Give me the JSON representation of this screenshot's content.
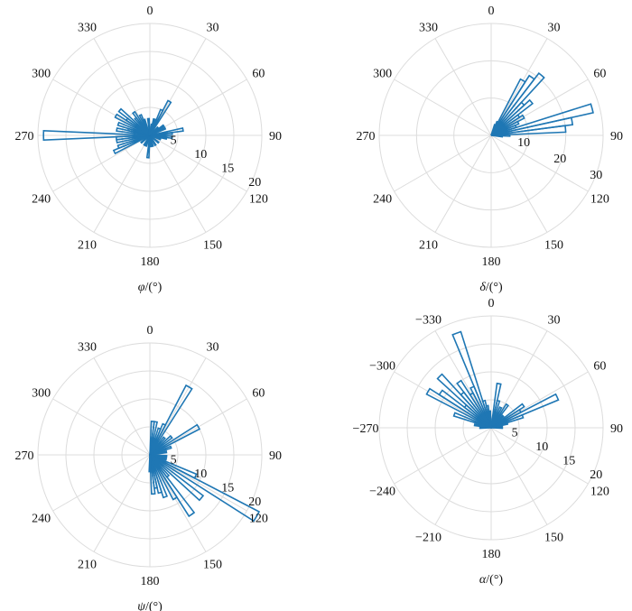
{
  "colors": {
    "bar": "#1f77b4",
    "grid": "#dcdcdc",
    "text": "#111111",
    "background": "#ffffff"
  },
  "chart_data": [
    {
      "type": "polar-histogram",
      "xlabel_var": "φ",
      "xlabel_unit": "/(°)",
      "angle_ticks": [
        {
          "angle": 0,
          "label": "0"
        },
        {
          "angle": 30,
          "label": "30"
        },
        {
          "angle": 60,
          "label": "60"
        },
        {
          "angle": 90,
          "label": "90"
        },
        {
          "angle": 120,
          "label": "120"
        },
        {
          "angle": 150,
          "label": "150"
        },
        {
          "angle": 180,
          "label": "180"
        },
        {
          "angle": 210,
          "label": "210"
        },
        {
          "angle": 240,
          "label": "240"
        },
        {
          "angle": 270,
          "label": "270"
        },
        {
          "angle": 300,
          "label": "300"
        },
        {
          "angle": 330,
          "label": "330"
        }
      ],
      "radial_ticks": [
        5,
        10,
        15,
        20
      ],
      "rlim": [
        0,
        20
      ],
      "grid": true,
      "bin_width_deg": 5,
      "bins": [
        {
          "angle": 10,
          "count": 2
        },
        {
          "angle": 15,
          "count": 3
        },
        {
          "angle": 20,
          "count": 3
        },
        {
          "angle": 25,
          "count": 5
        },
        {
          "angle": 30,
          "count": 7
        },
        {
          "angle": 45,
          "count": 2
        },
        {
          "angle": 55,
          "count": 3
        },
        {
          "angle": 65,
          "count": 3
        },
        {
          "angle": 80,
          "count": 6
        },
        {
          "angle": 85,
          "count": 4
        },
        {
          "angle": 95,
          "count": 4
        },
        {
          "angle": 100,
          "count": 3
        },
        {
          "angle": 110,
          "count": 2
        },
        {
          "angle": 130,
          "count": 2
        },
        {
          "angle": 150,
          "count": 2
        },
        {
          "angle": 165,
          "count": 2
        },
        {
          "angle": 175,
          "count": 2
        },
        {
          "angle": 185,
          "count": 4
        },
        {
          "angle": 200,
          "count": 2
        },
        {
          "angle": 210,
          "count": 2
        },
        {
          "angle": 230,
          "count": 2
        },
        {
          "angle": 245,
          "count": 7
        },
        {
          "angle": 250,
          "count": 6
        },
        {
          "angle": 260,
          "count": 6
        },
        {
          "angle": 265,
          "count": 6
        },
        {
          "angle": 270,
          "count": 19
        },
        {
          "angle": 280,
          "count": 6
        },
        {
          "angle": 285,
          "count": 4
        },
        {
          "angle": 290,
          "count": 6
        },
        {
          "angle": 300,
          "count": 7
        },
        {
          "angle": 305,
          "count": 5
        },
        {
          "angle": 310,
          "count": 7
        },
        {
          "angle": 320,
          "count": 4
        },
        {
          "angle": 325,
          "count": 5
        },
        {
          "angle": 335,
          "count": 4
        },
        {
          "angle": 340,
          "count": 3
        },
        {
          "angle": 355,
          "count": 3
        }
      ]
    },
    {
      "type": "polar-histogram",
      "xlabel_var": "δ",
      "xlabel_unit": "/(°)",
      "angle_ticks": [
        {
          "angle": 0,
          "label": "0"
        },
        {
          "angle": 30,
          "label": "30"
        },
        {
          "angle": 60,
          "label": "60"
        },
        {
          "angle": 90,
          "label": "90"
        },
        {
          "angle": 120,
          "label": "120"
        },
        {
          "angle": 150,
          "label": "150"
        },
        {
          "angle": 180,
          "label": "180"
        },
        {
          "angle": 210,
          "label": "210"
        },
        {
          "angle": 240,
          "label": "240"
        },
        {
          "angle": 270,
          "label": "270"
        },
        {
          "angle": 300,
          "label": "300"
        },
        {
          "angle": 330,
          "label": "330"
        }
      ],
      "radial_ticks": [
        10,
        20,
        30
      ],
      "rlim": [
        0,
        30
      ],
      "grid": true,
      "bin_width_deg": 5,
      "bins": [
        {
          "angle": 20,
          "count": 3
        },
        {
          "angle": 25,
          "count": 4
        },
        {
          "angle": 30,
          "count": 17
        },
        {
          "angle": 35,
          "count": 19
        },
        {
          "angle": 40,
          "count": 21
        },
        {
          "angle": 45,
          "count": 12
        },
        {
          "angle": 50,
          "count": 14
        },
        {
          "angle": 55,
          "count": 9
        },
        {
          "angle": 60,
          "count": 10
        },
        {
          "angle": 65,
          "count": 8
        },
        {
          "angle": 70,
          "count": 7
        },
        {
          "angle": 75,
          "count": 28
        },
        {
          "angle": 80,
          "count": 22
        },
        {
          "angle": 85,
          "count": 20
        },
        {
          "angle": 90,
          "count": 5
        },
        {
          "angle": 95,
          "count": 3
        }
      ]
    },
    {
      "type": "polar-histogram",
      "xlabel_var": "ψ",
      "xlabel_unit": "/(°)",
      "angle_ticks": [
        {
          "angle": 0,
          "label": "0"
        },
        {
          "angle": 30,
          "label": "30"
        },
        {
          "angle": 60,
          "label": "60"
        },
        {
          "angle": 90,
          "label": "90"
        },
        {
          "angle": 120,
          "label": "120"
        },
        {
          "angle": 150,
          "label": "150"
        },
        {
          "angle": 180,
          "label": "180"
        },
        {
          "angle": 210,
          "label": "210"
        },
        {
          "angle": 240,
          "label": "240"
        },
        {
          "angle": 270,
          "label": "270"
        },
        {
          "angle": 300,
          "label": "300"
        },
        {
          "angle": 330,
          "label": "330"
        }
      ],
      "radial_ticks": [
        5,
        10,
        15,
        20
      ],
      "rlim": [
        0,
        20
      ],
      "grid": true,
      "bin_width_deg": 5,
      "bins": [
        {
          "angle": 5,
          "count": 6
        },
        {
          "angle": 10,
          "count": 6
        },
        {
          "angle": 15,
          "count": 3
        },
        {
          "angle": 20,
          "count": 5
        },
        {
          "angle": 25,
          "count": 6
        },
        {
          "angle": 30,
          "count": 14
        },
        {
          "angle": 40,
          "count": 4
        },
        {
          "angle": 50,
          "count": 5
        },
        {
          "angle": 60,
          "count": 10
        },
        {
          "angle": 70,
          "count": 4
        },
        {
          "angle": 80,
          "count": 3
        },
        {
          "angle": 95,
          "count": 3
        },
        {
          "angle": 105,
          "count": 3
        },
        {
          "angle": 115,
          "count": 9
        },
        {
          "angle": 120,
          "count": 22
        },
        {
          "angle": 130,
          "count": 12
        },
        {
          "angle": 140,
          "count": 5
        },
        {
          "angle": 145,
          "count": 13
        },
        {
          "angle": 150,
          "count": 9
        },
        {
          "angle": 160,
          "count": 8
        },
        {
          "angle": 165,
          "count": 7
        },
        {
          "angle": 170,
          "count": 6
        },
        {
          "angle": 175,
          "count": 7
        },
        {
          "angle": 180,
          "count": 3
        }
      ]
    },
    {
      "type": "polar-histogram",
      "xlabel_var": "α",
      "xlabel_unit": "/(°)",
      "angle_ticks": [
        {
          "angle": 0,
          "label": "0"
        },
        {
          "angle": 30,
          "label": "30"
        },
        {
          "angle": 60,
          "label": "60"
        },
        {
          "angle": 90,
          "label": "90"
        },
        {
          "angle": 120,
          "label": "120"
        },
        {
          "angle": 150,
          "label": "150"
        },
        {
          "angle": 180,
          "label": "180"
        },
        {
          "angle": 210,
          "label": "−210"
        },
        {
          "angle": 240,
          "label": "−240"
        },
        {
          "angle": 270,
          "label": "−270"
        },
        {
          "angle": 300,
          "label": "−300"
        },
        {
          "angle": 330,
          "label": "−330"
        }
      ],
      "radial_ticks": [
        5,
        10,
        15,
        20
      ],
      "rlim": [
        0,
        20
      ],
      "grid": true,
      "bin_width_deg": 5,
      "bins": [
        {
          "angle": 10,
          "count": 8
        },
        {
          "angle": 15,
          "count": 5
        },
        {
          "angle": 25,
          "count": 4
        },
        {
          "angle": 35,
          "count": 5
        },
        {
          "angle": 45,
          "count": 3
        },
        {
          "angle": 55,
          "count": 7
        },
        {
          "angle": 60,
          "count": 6
        },
        {
          "angle": 65,
          "count": 13
        },
        {
          "angle": 70,
          "count": 6
        },
        {
          "angle": 75,
          "count": 3
        },
        {
          "angle": 80,
          "count": 2
        },
        {
          "angle": 90,
          "count": 2
        },
        {
          "angle": 270,
          "count": 2
        },
        {
          "angle": 280,
          "count": 3
        },
        {
          "angle": 290,
          "count": 7
        },
        {
          "angle": 300,
          "count": 13
        },
        {
          "angle": 305,
          "count": 11
        },
        {
          "angle": 310,
          "count": 6
        },
        {
          "angle": 315,
          "count": 13
        },
        {
          "angle": 320,
          "count": 8
        },
        {
          "angle": 325,
          "count": 10
        },
        {
          "angle": 330,
          "count": 7
        },
        {
          "angle": 335,
          "count": 8
        },
        {
          "angle": 340,
          "count": 18
        },
        {
          "angle": 345,
          "count": 5
        },
        {
          "angle": 350,
          "count": 4
        },
        {
          "angle": 355,
          "count": 3
        }
      ]
    }
  ]
}
